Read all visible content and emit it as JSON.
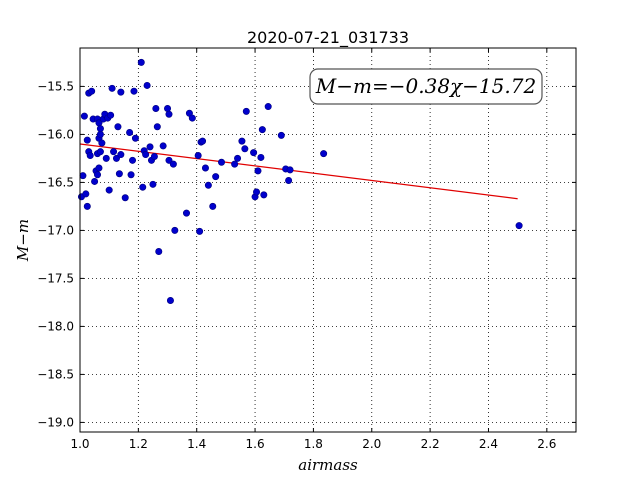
{
  "chart_data": {
    "type": "scatter",
    "title": "2020-07-21_031733",
    "xlabel": "airmass",
    "ylabel": "M−m",
    "xlim": [
      1.0,
      2.7
    ],
    "ylim": [
      -19.1,
      -15.1
    ],
    "x_ticks": [
      "1.0",
      "1.2",
      "1.4",
      "1.6",
      "1.8",
      "2.0",
      "2.2",
      "2.4",
      "2.6"
    ],
    "y_ticks": [
      "−15.5",
      "−16.0",
      "−16.5",
      "−17.0",
      "−17.5",
      "−18.0",
      "−18.5",
      "−19.0"
    ],
    "grid": true,
    "annotation": "M−m=−0.38χ−15.72",
    "colors": {
      "points": "#0000cc",
      "fit": "#e00000"
    },
    "points": [
      {
        "x": 1.005,
        "y": -16.65
      },
      {
        "x": 1.01,
        "y": -16.43
      },
      {
        "x": 1.015,
        "y": -15.81
      },
      {
        "x": 1.02,
        "y": -16.62
      },
      {
        "x": 1.025,
        "y": -16.06
      },
      {
        "x": 1.025,
        "y": -16.75
      },
      {
        "x": 1.03,
        "y": -15.57
      },
      {
        "x": 1.03,
        "y": -16.18
      },
      {
        "x": 1.035,
        "y": -16.22
      },
      {
        "x": 1.04,
        "y": -15.55
      },
      {
        "x": 1.045,
        "y": -15.84
      },
      {
        "x": 1.05,
        "y": -16.49
      },
      {
        "x": 1.055,
        "y": -16.38
      },
      {
        "x": 1.06,
        "y": -15.84
      },
      {
        "x": 1.06,
        "y": -16.2
      },
      {
        "x": 1.06,
        "y": -16.42
      },
      {
        "x": 1.065,
        "y": -15.88
      },
      {
        "x": 1.065,
        "y": -16.04
      },
      {
        "x": 1.065,
        "y": -16.35
      },
      {
        "x": 1.07,
        "y": -16.0
      },
      {
        "x": 1.07,
        "y": -16.18
      },
      {
        "x": 1.07,
        "y": -15.94
      },
      {
        "x": 1.075,
        "y": -16.09
      },
      {
        "x": 1.08,
        "y": -15.84
      },
      {
        "x": 1.085,
        "y": -15.79
      },
      {
        "x": 1.09,
        "y": -16.25
      },
      {
        "x": 1.095,
        "y": -15.83
      },
      {
        "x": 1.1,
        "y": -16.58
      },
      {
        "x": 1.105,
        "y": -15.8
      },
      {
        "x": 1.11,
        "y": -15.52
      },
      {
        "x": 1.115,
        "y": -16.18
      },
      {
        "x": 1.125,
        "y": -16.25
      },
      {
        "x": 1.13,
        "y": -15.92
      },
      {
        "x": 1.135,
        "y": -16.41
      },
      {
        "x": 1.14,
        "y": -15.56
      },
      {
        "x": 1.14,
        "y": -16.21
      },
      {
        "x": 1.155,
        "y": -16.66
      },
      {
        "x": 1.17,
        "y": -15.98
      },
      {
        "x": 1.175,
        "y": -16.42
      },
      {
        "x": 1.18,
        "y": -16.27
      },
      {
        "x": 1.185,
        "y": -15.55
      },
      {
        "x": 1.19,
        "y": -16.04
      },
      {
        "x": 1.21,
        "y": -15.25
      },
      {
        "x": 1.215,
        "y": -16.55
      },
      {
        "x": 1.22,
        "y": -16.17
      },
      {
        "x": 1.225,
        "y": -16.21
      },
      {
        "x": 1.23,
        "y": -15.49
      },
      {
        "x": 1.24,
        "y": -16.13
      },
      {
        "x": 1.245,
        "y": -16.27
      },
      {
        "x": 1.25,
        "y": -16.52
      },
      {
        "x": 1.255,
        "y": -16.23
      },
      {
        "x": 1.26,
        "y": -15.73
      },
      {
        "x": 1.265,
        "y": -15.92
      },
      {
        "x": 1.27,
        "y": -17.22
      },
      {
        "x": 1.285,
        "y": -16.12
      },
      {
        "x": 1.3,
        "y": -15.73
      },
      {
        "x": 1.305,
        "y": -15.79
      },
      {
        "x": 1.305,
        "y": -16.27
      },
      {
        "x": 1.31,
        "y": -17.73
      },
      {
        "x": 1.32,
        "y": -16.31
      },
      {
        "x": 1.325,
        "y": -17.0
      },
      {
        "x": 1.365,
        "y": -16.82
      },
      {
        "x": 1.375,
        "y": -15.78
      },
      {
        "x": 1.385,
        "y": -15.83
      },
      {
        "x": 1.405,
        "y": -16.22
      },
      {
        "x": 1.41,
        "y": -17.01
      },
      {
        "x": 1.415,
        "y": -16.08
      },
      {
        "x": 1.42,
        "y": -16.07
      },
      {
        "x": 1.43,
        "y": -16.35
      },
      {
        "x": 1.44,
        "y": -16.53
      },
      {
        "x": 1.455,
        "y": -16.75
      },
      {
        "x": 1.465,
        "y": -16.44
      },
      {
        "x": 1.485,
        "y": -16.29
      },
      {
        "x": 1.53,
        "y": -16.31
      },
      {
        "x": 1.54,
        "y": -16.25
      },
      {
        "x": 1.555,
        "y": -16.07
      },
      {
        "x": 1.565,
        "y": -16.15
      },
      {
        "x": 1.57,
        "y": -15.76
      },
      {
        "x": 1.595,
        "y": -16.19
      },
      {
        "x": 1.6,
        "y": -16.65
      },
      {
        "x": 1.605,
        "y": -16.6
      },
      {
        "x": 1.61,
        "y": -16.38
      },
      {
        "x": 1.62,
        "y": -16.24
      },
      {
        "x": 1.625,
        "y": -15.95
      },
      {
        "x": 1.63,
        "y": -16.63
      },
      {
        "x": 1.645,
        "y": -15.71
      },
      {
        "x": 1.69,
        "y": -16.01
      },
      {
        "x": 1.705,
        "y": -16.36
      },
      {
        "x": 1.715,
        "y": -16.48
      },
      {
        "x": 1.72,
        "y": -16.37
      },
      {
        "x": 1.835,
        "y": -16.2
      },
      {
        "x": 2.505,
        "y": -16.95
      }
    ],
    "fit_line": {
      "slope": -0.38,
      "intercept": -15.72,
      "x_range": [
        1.0,
        2.5
      ]
    }
  }
}
